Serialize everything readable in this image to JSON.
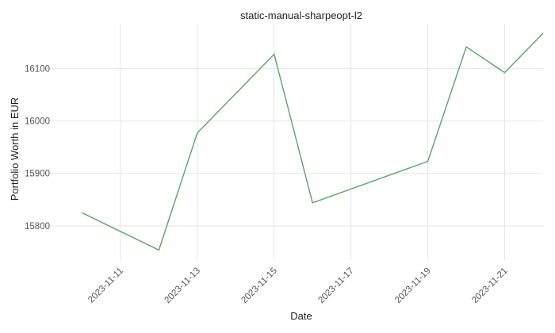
{
  "chart_data": {
    "type": "line",
    "title": "static-manual-sharpeopt-l2",
    "xlabel": "Date",
    "ylabel": "Portfolio Worth in EUR",
    "x_tick_labels": [
      "2023-11-11",
      "2023-11-13",
      "2023-11-15",
      "2023-11-17",
      "2023-11-19",
      "2023-11-21"
    ],
    "y_ticks": [
      15800,
      15900,
      16000,
      16100
    ],
    "xlim": [
      "2023-11-09",
      "2023-11-22"
    ],
    "ylim": [
      15735,
      16185
    ],
    "grid": true,
    "series": [
      {
        "color": "#5aa469",
        "x": [
          "2023-11-10",
          "2023-11-12",
          "2023-11-13",
          "2023-11-15",
          "2023-11-16",
          "2023-11-19",
          "2023-11-20",
          "2023-11-21",
          "2023-11-22"
        ],
        "y": [
          15825,
          15754,
          15977,
          16127,
          15844,
          15923,
          16141,
          16092,
          16167
        ]
      }
    ]
  }
}
